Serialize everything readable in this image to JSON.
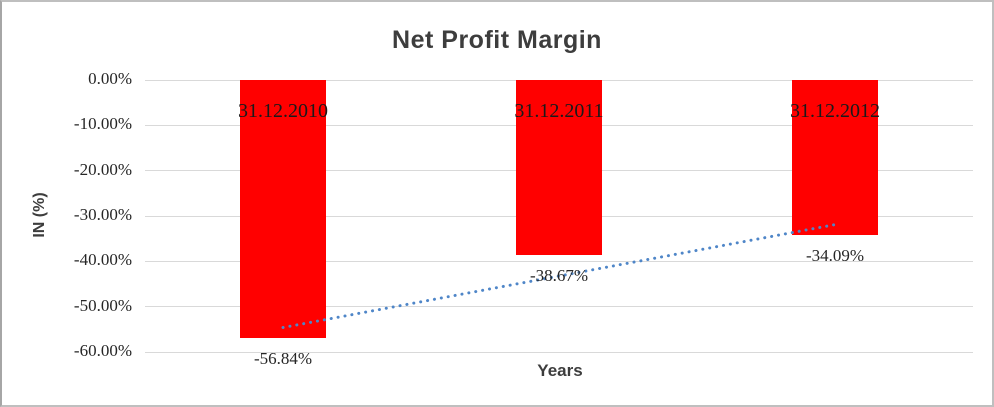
{
  "chart_data": {
    "type": "bar",
    "title": "Net Profit Margin",
    "xlabel": "Years",
    "ylabel": "IN (%)",
    "categories": [
      "31.12.2010",
      "31.12.2011",
      "31.12.2012"
    ],
    "values": [
      -56.84,
      -38.67,
      -34.09
    ],
    "data_labels": [
      "-56.84%",
      "-38.67%",
      "-34.09%"
    ],
    "ylim": [
      -60,
      0
    ],
    "yticks": [
      {
        "value": 0,
        "label": "0.00%"
      },
      {
        "value": -10,
        "label": "-10.00%"
      },
      {
        "value": -20,
        "label": "-20.00%"
      },
      {
        "value": -30,
        "label": "-30.00%"
      },
      {
        "value": -40,
        "label": "-40.00%"
      },
      {
        "value": -50,
        "label": "-50.00%"
      },
      {
        "value": -60,
        "label": "-60.00%"
      }
    ],
    "grid": true,
    "legend_position": "none",
    "bar_color": "#ff0000",
    "gridline_color": "#d9d9d9",
    "trendline": {
      "type": "linear",
      "style": "dotted",
      "color": "#4f86c8",
      "start_value": -54.6,
      "end_value": -31.9
    },
    "colors": {
      "title_text": "#3d3d3d",
      "axis_title_text": "#3d3d3d",
      "tick_text": "#262626",
      "bar_label_text": "#1a1a1a",
      "data_label_text": "#262626"
    }
  }
}
